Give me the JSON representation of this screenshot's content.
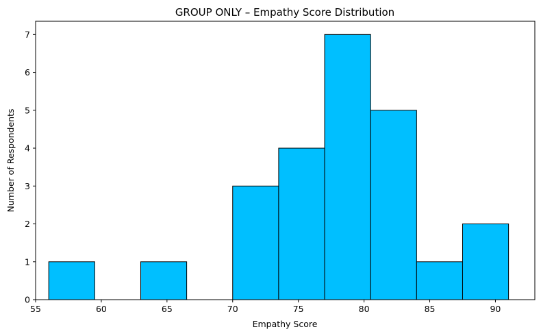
{
  "chart_data": {
    "type": "bar",
    "title": "GROUP ONLY – Empathy Score Distribution",
    "xlabel": "Empathy Score",
    "ylabel": "Number of Respondents",
    "xlim": [
      55,
      93
    ],
    "ylim": [
      0,
      7.35
    ],
    "xticks": [
      55,
      60,
      65,
      70,
      75,
      80,
      85,
      90
    ],
    "yticks": [
      0,
      1,
      2,
      3,
      4,
      5,
      6,
      7
    ],
    "bins": [
      {
        "x0": 56.0,
        "x1": 59.5,
        "count": 1
      },
      {
        "x0": 59.5,
        "x1": 63.0,
        "count": 0
      },
      {
        "x0": 63.0,
        "x1": 66.5,
        "count": 1
      },
      {
        "x0": 66.5,
        "x1": 70.0,
        "count": 0
      },
      {
        "x0": 70.0,
        "x1": 73.5,
        "count": 3
      },
      {
        "x0": 73.5,
        "x1": 77.0,
        "count": 4
      },
      {
        "x0": 77.0,
        "x1": 80.5,
        "count": 7
      },
      {
        "x0": 80.5,
        "x1": 84.0,
        "count": 5
      },
      {
        "x0": 84.0,
        "x1": 87.5,
        "count": 1
      },
      {
        "x0": 87.5,
        "x1": 91.0,
        "count": 2
      }
    ],
    "bar_color": "#00BFFF",
    "edge_color": "#000000",
    "grid": false
  }
}
